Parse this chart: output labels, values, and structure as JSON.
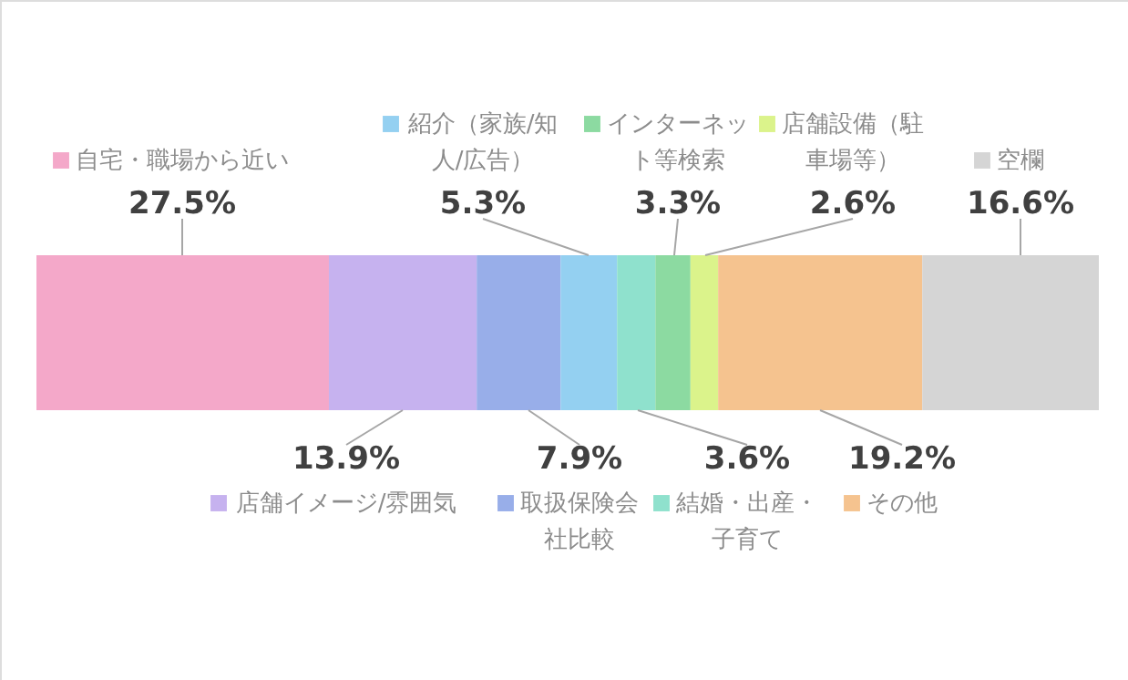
{
  "chart_data": {
    "type": "bar",
    "stacked": true,
    "legend": "top",
    "orientation": "horizontal",
    "categories": [
      null
    ],
    "series": [
      {
        "name": "自宅・職場から近い",
        "color": "#f4a8c9",
        "values": [
          27.5
        ],
        "value_labels": [
          "27.5%"
        ]
      },
      {
        "name": "店舗イメージ/雰囲気",
        "color": "#c6b2ef",
        "values": [
          13.9
        ],
        "value_labels": [
          "13.9%"
        ]
      },
      {
        "name": "取扱保険会社比較",
        "color": "#98aee9",
        "values": [
          7.9
        ],
        "value_labels": [
          "7.9%"
        ]
      },
      {
        "name": "紹介（家族/知人/広告）",
        "color": "#94d0f1",
        "values": [
          5.3
        ],
        "value_labels": [
          "5.3%"
        ]
      },
      {
        "name": "結婚・出産・子育て",
        "color": "#8fe1cd",
        "values": [
          3.6
        ],
        "value_labels": [
          "3.6%"
        ]
      },
      {
        "name": "インターネット等検索",
        "color": "#8cdaa1",
        "values": [
          3.3
        ],
        "value_labels": [
          "3.3%"
        ]
      },
      {
        "name": "店舗設備（駐車場等）",
        "color": "#dbf38b",
        "values": [
          2.6
        ],
        "value_labels": [
          "2.6%"
        ]
      },
      {
        "name": "その他",
        "color": "#f5c38f",
        "values": [
          19.2
        ],
        "value_labels": [
          "19.2%"
        ]
      },
      {
        "name": "空欄",
        "color": "#d5d5d5",
        "values": [
          16.6
        ],
        "value_labels": [
          "16.6%"
        ]
      }
    ]
  }
}
